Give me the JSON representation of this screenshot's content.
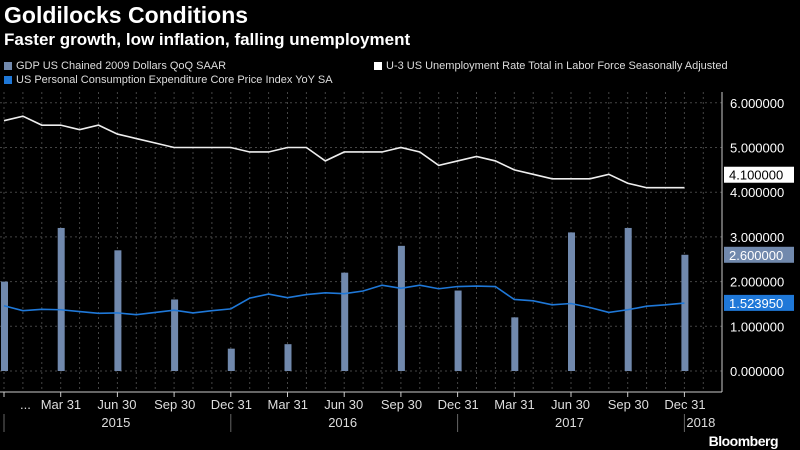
{
  "chart_data": {
    "type": "bar+line",
    "title": "Goldilocks Conditions",
    "subtitle": "Faster growth, low inflation, falling unemployment",
    "legend": [
      {
        "name": "GDP US Chained 2009 Dollars QoQ SAAR",
        "color": "#7189ad"
      },
      {
        "name": "U-3 US Unemployment Rate Total in Labor Force Seasonally Adjusted",
        "color": "#ffffff"
      },
      {
        "name": "US Personal Consumption Expenditure Core Price Index YoY SA",
        "color": "#1f78d8"
      }
    ],
    "ylim": [
      -0.4,
      6.3
    ],
    "yticks": [
      "0.000000",
      "1.000000",
      "2.000000",
      "3.000000",
      "4.000000",
      "5.000000",
      "6.000000"
    ],
    "xticks": [
      "...",
      "Mar 31",
      "Jun 30",
      "Sep 30",
      "Dec 31",
      "Mar 31",
      "Jun 30",
      "Sep 30",
      "Dec 31",
      "Mar 31",
      "Jun 30",
      "Sep 30",
      "Dec 31"
    ],
    "years": [
      "2015",
      "2016",
      "2017",
      "2018"
    ],
    "gdp_months": [
      0,
      3,
      6,
      9,
      12,
      15,
      18,
      21,
      24,
      27,
      30,
      33,
      36
    ],
    "gdp": [
      2.0,
      3.2,
      2.7,
      1.6,
      0.5,
      0.6,
      2.2,
      2.8,
      1.8,
      1.2,
      3.1,
      3.2,
      2.6
    ],
    "unemployment": [
      5.6,
      5.7,
      5.5,
      5.5,
      5.4,
      5.5,
      5.3,
      5.2,
      5.1,
      5.0,
      5.0,
      5.0,
      5.0,
      4.9,
      4.9,
      5.0,
      5.0,
      4.7,
      4.9,
      4.9,
      4.9,
      5.0,
      4.9,
      4.6,
      4.7,
      4.8,
      4.7,
      4.5,
      4.4,
      4.3,
      4.3,
      4.3,
      4.4,
      4.2,
      4.1,
      4.1,
      4.1
    ],
    "pce": [
      1.46,
      1.35,
      1.38,
      1.37,
      1.33,
      1.29,
      1.3,
      1.26,
      1.31,
      1.36,
      1.3,
      1.35,
      1.39,
      1.63,
      1.72,
      1.64,
      1.71,
      1.75,
      1.73,
      1.79,
      1.92,
      1.85,
      1.92,
      1.84,
      1.89,
      1.9,
      1.89,
      1.6,
      1.57,
      1.48,
      1.51,
      1.42,
      1.31,
      1.37,
      1.45,
      1.48,
      1.52
    ],
    "last_labels": {
      "unemployment": "4.100000",
      "gdp": "2.600000",
      "pce": "1.523950"
    }
  },
  "brand": "Bloomberg"
}
